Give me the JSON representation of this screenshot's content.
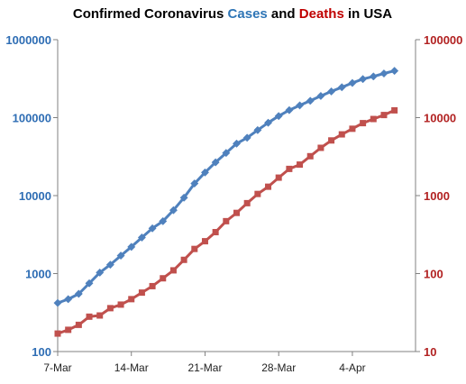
{
  "chart_data": {
    "type": "line",
    "title": {
      "part1": "Confirmed Coronavirus ",
      "part2": "Cases",
      "part3": " and ",
      "part4": "Deaths",
      "part5": " in USA"
    },
    "x_start": "2020-03-07",
    "x_tick_labels": [
      "7-Mar",
      "14-Mar",
      "21-Mar",
      "28-Mar",
      "4-Apr"
    ],
    "x_range": [
      "2020-03-07",
      "2020-04-10"
    ],
    "y_left": {
      "scale": "log",
      "range": [
        100,
        1000000
      ],
      "tick_labels": [
        "100",
        "1000",
        "10000",
        "100000",
        "1000000"
      ],
      "tick_values": [
        100,
        1000,
        10000,
        100000,
        1000000
      ]
    },
    "y_right": {
      "scale": "log",
      "range": [
        10,
        100000
      ],
      "tick_labels": [
        "10",
        "100",
        "1000",
        "10000",
        "100000"
      ],
      "tick_values": [
        10,
        100,
        1000,
        10000,
        100000
      ]
    },
    "grid": false,
    "legend": "none",
    "series": [
      {
        "axis": "left",
        "color": "#4f81bd",
        "marker": "diamond",
        "x": [
          "2020-03-07",
          "2020-03-08",
          "2020-03-09",
          "2020-03-10",
          "2020-03-11",
          "2020-03-12",
          "2020-03-13",
          "2020-03-14",
          "2020-03-15",
          "2020-03-16",
          "2020-03-17",
          "2020-03-18",
          "2020-03-19",
          "2020-03-20",
          "2020-03-21",
          "2020-03-22",
          "2020-03-23",
          "2020-03-24",
          "2020-03-25",
          "2020-03-26",
          "2020-03-27",
          "2020-03-28",
          "2020-03-29",
          "2020-03-30",
          "2020-03-31",
          "2020-04-01",
          "2020-04-02",
          "2020-04-03",
          "2020-04-04",
          "2020-04-05",
          "2020-04-06",
          "2020-04-07",
          "2020-04-08"
        ],
        "values": [
          420,
          470,
          550,
          750,
          1030,
          1300,
          1700,
          2200,
          2900,
          3800,
          4700,
          6500,
          9400,
          14300,
          19800,
          26700,
          35200,
          46400,
          55200,
          69200,
          86000,
          104800,
          124700,
          143500,
          164400,
          189600,
          216700,
          245400,
          278400,
          312200,
          337600,
          368400,
          397900
        ]
      },
      {
        "axis": "right",
        "color": "#c0504d",
        "marker": "square",
        "x": [
          "2020-03-07",
          "2020-03-08",
          "2020-03-09",
          "2020-03-10",
          "2020-03-11",
          "2020-03-12",
          "2020-03-13",
          "2020-03-14",
          "2020-03-15",
          "2020-03-16",
          "2020-03-17",
          "2020-03-18",
          "2020-03-19",
          "2020-03-20",
          "2020-03-21",
          "2020-03-22",
          "2020-03-23",
          "2020-03-24",
          "2020-03-25",
          "2020-03-26",
          "2020-03-27",
          "2020-03-28",
          "2020-03-29",
          "2020-03-30",
          "2020-03-31",
          "2020-04-01",
          "2020-04-02",
          "2020-04-03",
          "2020-04-04",
          "2020-04-05",
          "2020-04-06",
          "2020-04-07",
          "2020-04-08"
        ],
        "values": [
          17,
          19,
          22,
          28,
          29,
          36,
          40,
          47,
          57,
          69,
          87,
          110,
          150,
          207,
          260,
          340,
          470,
          600,
          800,
          1050,
          1300,
          1700,
          2200,
          2500,
          3200,
          4100,
          5100,
          6100,
          7200,
          8500,
          9600,
          10800,
          12400
        ]
      }
    ],
    "colors": {
      "title_cases": "#2e75b6",
      "title_deaths": "#c00000",
      "left_axis_labels": "#2e6db4",
      "right_axis_labels": "#b22222",
      "axis_line": "#808080"
    }
  }
}
